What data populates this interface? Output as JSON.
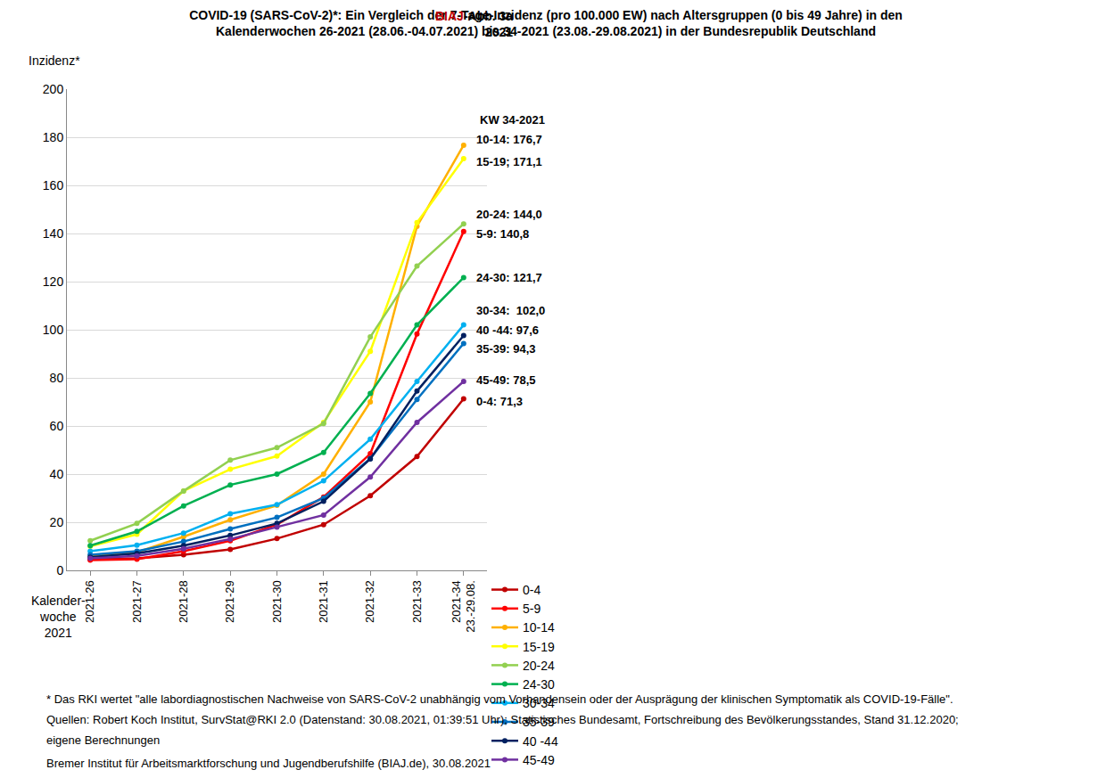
{
  "chart_data": {
    "type": "line",
    "title": "COVID-19 (SARS-CoV-2)*: Ein Vergleich der 7-Tage-Inzidenz (pro 100.000 EW) nach Altersgruppen (0 bis 49 Jahre) in den\nKalenderwochen 26-2021 (28.06.-04.07.2021) bis 34-2021 (23.08.-29.08.2021) in der Bundesrepublik Deutschland",
    "corner_label": [
      "BIAJ-Abb. 3a",
      "2021"
    ],
    "y_label": "Inzidenz*",
    "x_label": "Kalender-\nwoche\n2021",
    "categories": [
      "2021-26",
      "2021-27",
      "2021-28",
      "2021-29",
      "2021-30",
      "2021-31",
      "2021-32",
      "2021-33",
      "2021-34\n23.-29.08."
    ],
    "series": [
      {
        "name": "0-4",
        "color": "#C00000",
        "values": [
          4.5,
          5,
          6.5,
          8.7,
          13.2,
          19,
          31,
          47.3,
          71.3
        ]
      },
      {
        "name": "5-9",
        "color": "#FF0000",
        "values": [
          4.3,
          4.6,
          8,
          12.3,
          19,
          30.5,
          48.5,
          98.2,
          140.8
        ]
      },
      {
        "name": "10-14",
        "color": "#FFB000",
        "values": [
          5.7,
          7.5,
          14,
          21,
          27,
          40,
          70,
          143,
          176.7
        ]
      },
      {
        "name": "15-19",
        "color": "#FFFF00",
        "values": [
          10,
          15,
          33,
          42,
          47.5,
          61.5,
          91,
          144.5,
          171.1
        ]
      },
      {
        "name": "20-24",
        "color": "#92D050",
        "values": [
          12.3,
          19.5,
          33,
          45.8,
          51,
          61,
          97,
          126.5,
          144.0
        ]
      },
      {
        "name": "24-30",
        "color": "#00B050",
        "values": [
          10.3,
          16.2,
          26.8,
          35.5,
          40,
          49,
          73.5,
          102,
          121.7
        ]
      },
      {
        "name": "30-34",
        "color": "#00B0F0",
        "values": [
          8,
          10.5,
          15.5,
          23.5,
          27.3,
          37.2,
          54.5,
          78.5,
          102.0
        ]
      },
      {
        "name": "35-39",
        "color": "#0070C0",
        "values": [
          6.5,
          8,
          12,
          17.2,
          22,
          30,
          46.5,
          71,
          94.3
        ]
      },
      {
        "name": "40 -44",
        "color": "#002060",
        "values": [
          5.5,
          7,
          10.3,
          14.5,
          19.5,
          28.7,
          46.3,
          74.5,
          97.6
        ]
      },
      {
        "name": "45-49",
        "color": "#7030A0",
        "values": [
          5,
          6,
          9,
          13,
          18,
          23,
          38.8,
          61.5,
          78.5
        ]
      }
    ],
    "ylim": [
      0,
      200
    ],
    "yticks": [
      0,
      20,
      40,
      60,
      80,
      100,
      120,
      140,
      160,
      180,
      200
    ],
    "grid": true,
    "legend": "bottom",
    "marker": "circle",
    "line_style": "solid",
    "annotation_header": "KW 34-2021",
    "annotations": [
      {
        "text": "10-14: 176,7",
        "x": "2021-34\n23.-29.08.",
        "y": 176.7
      },
      {
        "text": "15-19; 171,1",
        "x": "2021-34\n23.-29.08.",
        "y": 171.1
      },
      {
        "text": "20-24: 144,0",
        "x": "2021-34\n23.-29.08.",
        "y": 144.0
      },
      {
        "text": "5-9: 140,8",
        "x": "2021-34\n23.-29.08.",
        "y": 140.8
      },
      {
        "text": "24-30: 121,7",
        "x": "2021-34\n23.-29.08.",
        "y": 121.7
      },
      {
        "text": "30-34:  102,0",
        "x": "2021-34\n23.-29.08.",
        "y": 102.0
      },
      {
        "text": "40 -44: 97,6",
        "x": "2021-34\n23.-29.08.",
        "y": 97.6
      },
      {
        "text": "35-39: 94,3",
        "x": "2021-34\n23.-29.08.",
        "y": 94.3
      },
      {
        "text": "45-49: 78,5",
        "x": "2021-34\n23.-29.08.",
        "y": 78.5
      },
      {
        "text": "0-4: 71,3",
        "x": "2021-34\n23.-29.08.",
        "y": 71.3
      }
    ],
    "footnotes": [
      "* Das RKI wertet \"alle labordiagnostischen Nachweise von SARS-CoV-2 unabhängig vom Vorhandensein oder der Ausprägung der klinischen Symptomatik als COVID-19-Fälle\".",
      "Quellen: Robert Koch Institut, SurvStat@RKI 2.0 (Datenstand: 30.08.2021, 01:39:51 Uhr); Statistisches Bundesamt, Fortschreibung des Bevölkerungsstandes, Stand 31.12.2020;",
      "eigene Berechnungen",
      "Bremer Institut für Arbeitsmarktforschung und Jugendberufshilfe (BIAJ.de), 30.08.2021"
    ]
  }
}
